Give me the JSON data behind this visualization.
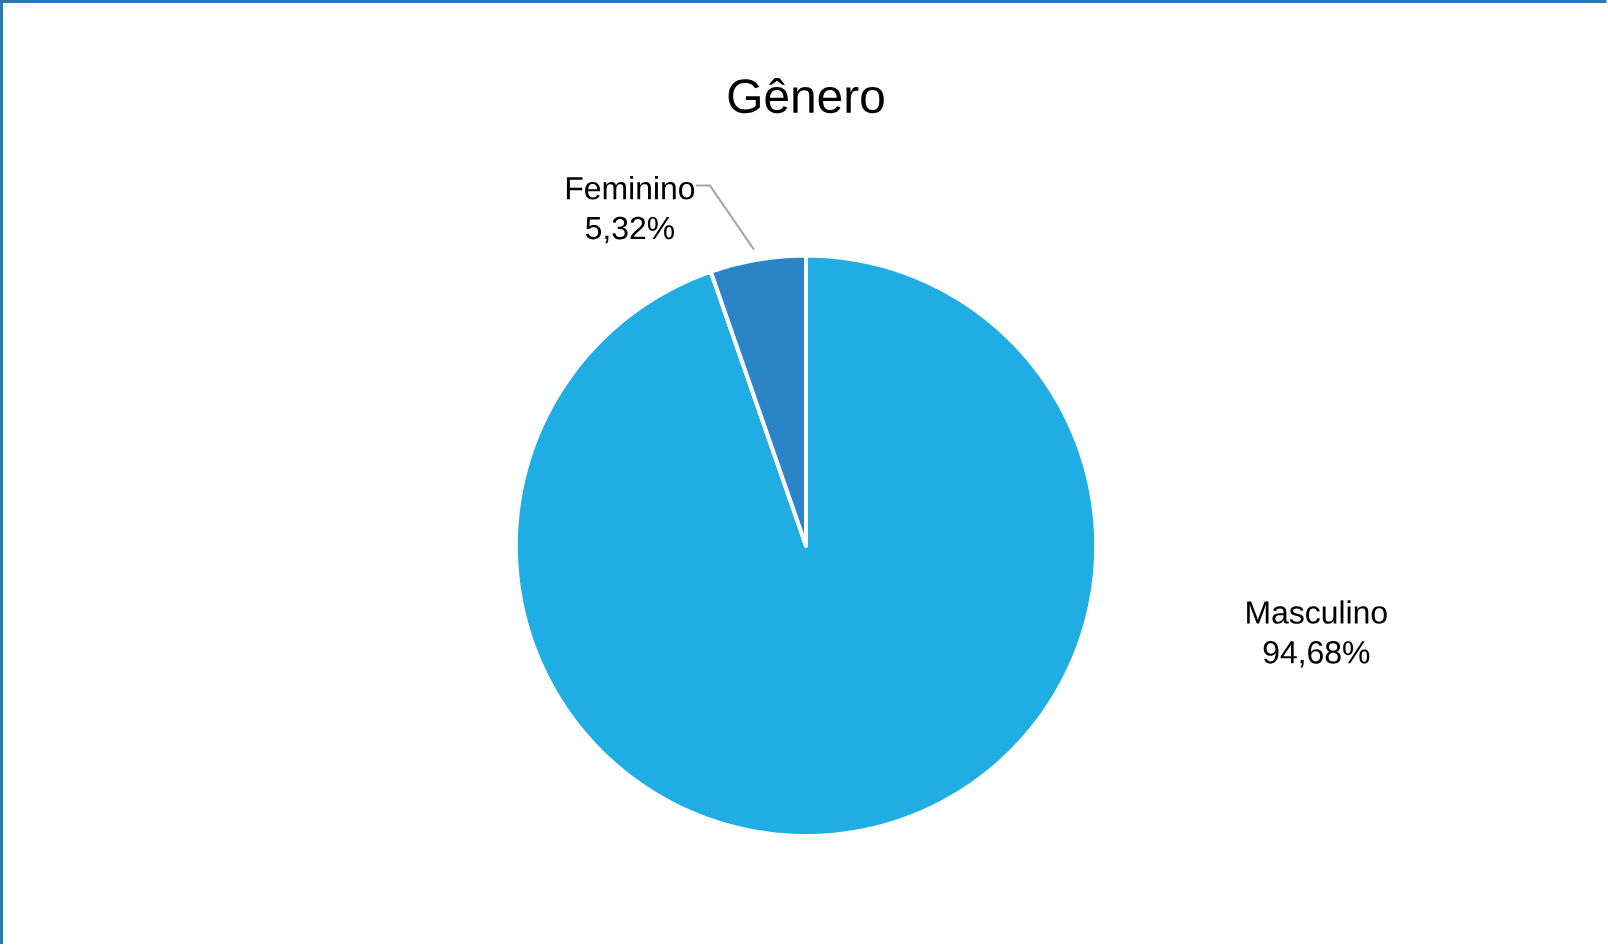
{
  "chart_data": {
    "type": "pie",
    "title": "Gênero",
    "categories": [
      "Masculino",
      "Feminino"
    ],
    "values": [
      94.68,
      5.32
    ],
    "colors": [
      "#1fade3",
      "#2a84c6"
    ],
    "value_labels": [
      "94,68%",
      "5,32%"
    ]
  }
}
